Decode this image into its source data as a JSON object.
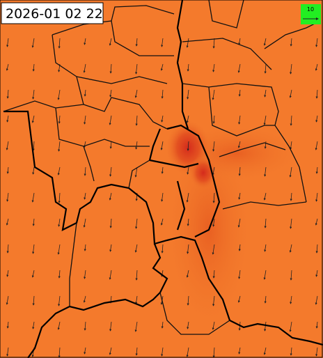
{
  "timestamp": "2026-01 02 22",
  "legend": {
    "label": "10"
  }
}
